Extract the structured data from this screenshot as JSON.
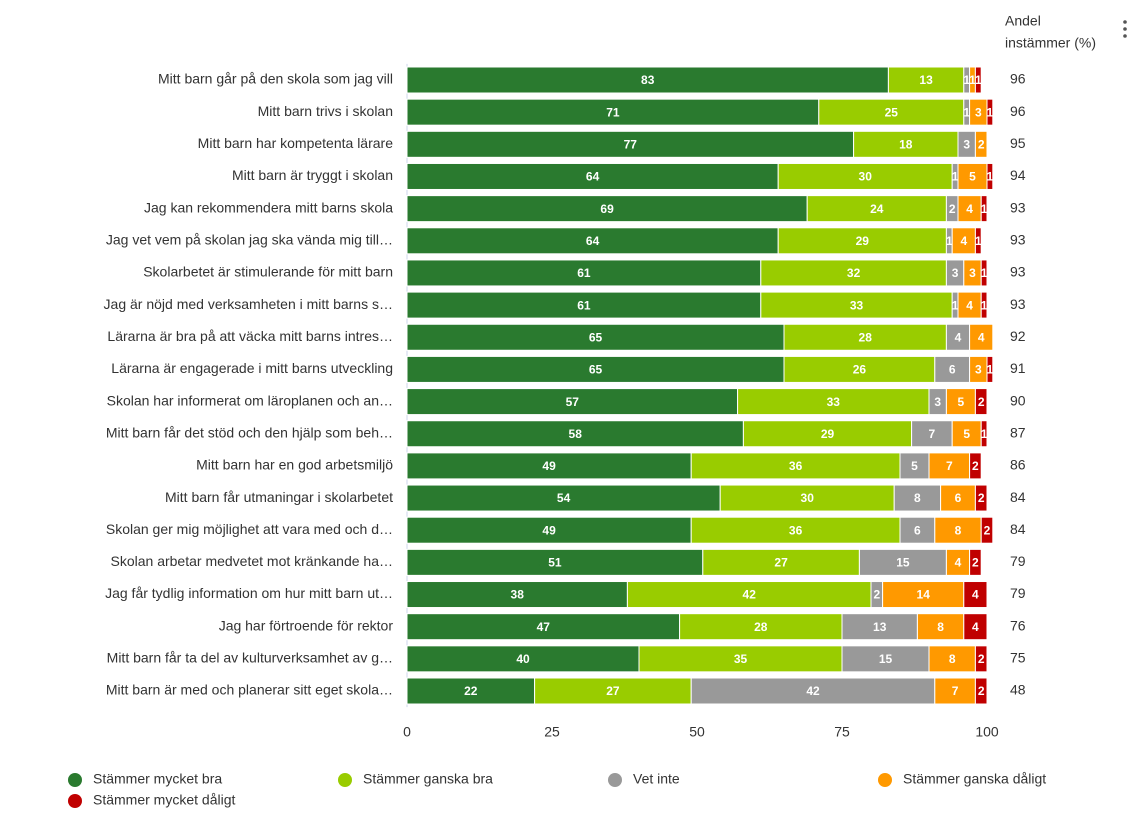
{
  "chart_data": {
    "type": "stacked_bar_horizontal",
    "categories": [
      "Mitt barn går på den skola som jag vill",
      "Mitt barn trivs i skolan",
      "Mitt barn har kompetenta lärare",
      "Mitt barn är tryggt i skolan",
      "Jag kan rekommendera mitt barns skola",
      "Jag vet vem på skolan jag ska vända mig till…",
      "Skolarbetet är stimulerande för mitt barn",
      "Jag är nöjd med verksamheten i mitt barns s…",
      "Lärarna är bra på att väcka mitt barns intres…",
      "Lärarna är engagerade i mitt barns utveckling",
      "Skolan har informerat om läroplanen och an…",
      "Mitt barn får det stöd och den hjälp som beh…",
      "Mitt barn har en god arbetsmiljö",
      "Mitt barn får utmaningar i skolarbetet",
      "Skolan ger mig möjlighet att vara med och d…",
      "Skolan arbetar medvetet mot kränkande ha…",
      "Jag får tydlig information om hur mitt barn ut…",
      "Jag har förtroende för rektor",
      "Mitt barn får ta del av kulturverksamhet av g…",
      "Mitt barn är med och planerar sitt eget skola…"
    ],
    "series": [
      {
        "name": "Stämmer mycket bra",
        "color": "#2a7a2f",
        "values": [
          83,
          71,
          77,
          64,
          69,
          64,
          61,
          61,
          65,
          65,
          57,
          58,
          49,
          54,
          49,
          51,
          38,
          47,
          40,
          22
        ]
      },
      {
        "name": "Stämmer ganska bra",
        "color": "#99cc00",
        "values": [
          13,
          25,
          18,
          30,
          24,
          29,
          32,
          33,
          28,
          26,
          33,
          29,
          36,
          30,
          36,
          27,
          42,
          28,
          35,
          27
        ]
      },
      {
        "name": "Vet inte",
        "color": "#999999",
        "values": [
          1,
          1,
          3,
          1,
          2,
          1,
          3,
          1,
          4,
          6,
          3,
          7,
          5,
          8,
          6,
          15,
          2,
          13,
          15,
          42
        ]
      },
      {
        "name": "Stämmer ganska dåligt",
        "color": "#ff9900",
        "values": [
          1,
          3,
          2,
          5,
          4,
          4,
          3,
          4,
          4,
          3,
          5,
          5,
          7,
          6,
          8,
          4,
          14,
          8,
          8,
          7
        ]
      },
      {
        "name": "Stämmer mycket dåligt",
        "color": "#c00000",
        "values": [
          1,
          1,
          0,
          1,
          1,
          1,
          1,
          1,
          0,
          1,
          2,
          1,
          2,
          2,
          2,
          2,
          4,
          4,
          2,
          2
        ]
      }
    ],
    "xlim": [
      0,
      100
    ],
    "xticks": [
      0,
      25,
      50,
      75,
      100
    ],
    "right_column": {
      "title_lines": [
        "Andel",
        "instämmer (%)"
      ],
      "values": [
        96,
        96,
        95,
        94,
        93,
        93,
        93,
        93,
        92,
        91,
        90,
        87,
        86,
        84,
        84,
        79,
        79,
        76,
        75,
        48
      ]
    }
  }
}
